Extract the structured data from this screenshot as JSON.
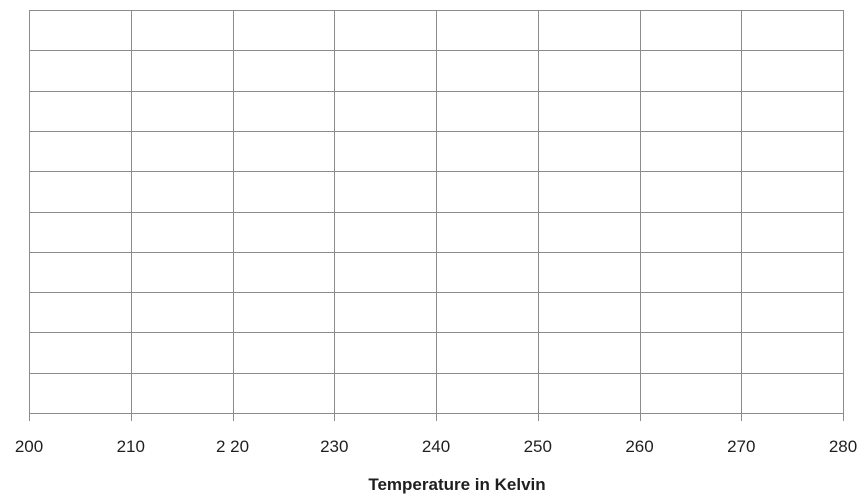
{
  "chart_data": {
    "type": "scatter",
    "title": "",
    "xlabel": "Temperature in Kelvin",
    "ylabel": "",
    "xlim": [
      200,
      280
    ],
    "x_ticks": [
      200,
      210,
      220,
      230,
      240,
      250,
      260,
      270,
      280
    ],
    "x_tick_labels": [
      "200",
      "210",
      "2 20",
      "230",
      "240",
      "250",
      "260",
      "270",
      "280"
    ],
    "y_gridline_count": 10,
    "grid": true,
    "series": [],
    "colors": {
      "grid": "#8c8c8c",
      "text": "#1f1f1f",
      "background": "#ffffff"
    }
  }
}
